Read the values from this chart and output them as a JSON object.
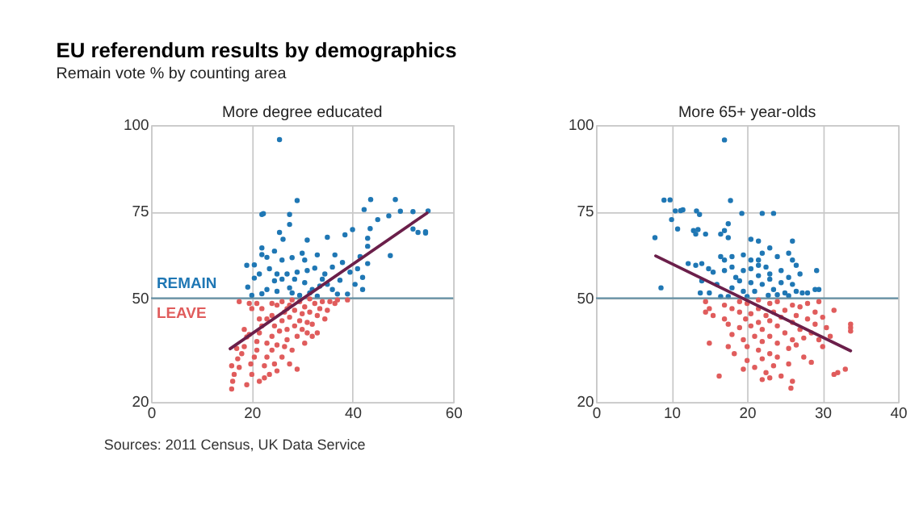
{
  "chart_data": [
    {
      "type": "scatter",
      "title": "EU referendum results by demographics",
      "subtitle": "Remain vote % by counting area",
      "xlabel": "More degree educated",
      "xlim": [
        0,
        60
      ],
      "xticks": [
        0,
        20,
        40,
        60
      ],
      "ylim": [
        20,
        100
      ],
      "yticks": [
        20,
        50,
        75,
        100
      ],
      "grid": true,
      "marker": "circle",
      "annotations": [
        "REMAIN",
        "LEAVE",
        "Sources: 2011 Census, UK Data Service"
      ],
      "ref_lines": [
        {
          "axis": "y",
          "value": 50,
          "color": "#5b8aa0"
        }
      ],
      "series": [
        {
          "type": "scatter",
          "color": "#1f77b4",
          "x": [
            25.5,
            29,
            43.6,
            48.5,
            22,
            22.3,
            27.5,
            27.5,
            25.5,
            26.2,
            31,
            35,
            38.5,
            40,
            42.3,
            43.5,
            45,
            47.2,
            49.5,
            52,
            53,
            54.5,
            54.5,
            55,
            52,
            47.5,
            43,
            43,
            19,
            20.5,
            22,
            22,
            23,
            24.5,
            26,
            28,
            30,
            30.5,
            33,
            36.5,
            38,
            36,
            34.5,
            32.5,
            31,
            29,
            27,
            25,
            23.5,
            21.5,
            19.2,
            20.5,
            22,
            23,
            24.5,
            26,
            27.5,
            28,
            29.5,
            30.5,
            32,
            33.5,
            35,
            36,
            37.5,
            39,
            40.5,
            42,
            42,
            41,
            43,
            41.5,
            39.5,
            34,
            25,
            28.5,
            31.5,
            37,
            20,
            33
          ],
          "values": [
            95.8,
            78.2,
            78.5,
            78.5,
            74.2,
            74.4,
            74.2,
            71.3,
            69,
            67,
            66.8,
            67.6,
            68.3,
            69.8,
            75.6,
            70.1,
            72.7,
            73.8,
            75.1,
            75,
            69,
            68.8,
            69.2,
            75.2,
            70,
            62.3,
            65,
            67.3,
            59.5,
            59.6,
            62.6,
            64.5,
            61.8,
            63.6,
            61,
            61.7,
            63,
            61,
            62.5,
            62.5,
            60.3,
            59,
            57,
            58.7,
            58,
            57.5,
            57,
            57,
            58.5,
            57,
            53.2,
            55.8,
            51.3,
            52.5,
            55,
            55.5,
            53,
            51.5,
            50.8,
            54.5,
            52.5,
            53.5,
            54,
            52.5,
            55.2,
            51.2,
            54,
            52.5,
            56,
            58.5,
            60,
            62,
            57.5,
            55.5,
            52,
            55.5,
            51.5,
            51.2,
            50.8,
            50.6
          ]
        },
        {
          "type": "scatter",
          "color": "#e05c5c",
          "x": [
            16,
            16.2,
            16.5,
            16,
            17.5,
            17.2,
            18,
            17,
            18.5,
            19,
            18.5,
            19.5,
            19.8,
            20,
            20.5,
            21,
            21,
            21.5,
            22,
            21.5,
            22,
            20,
            17.5,
            19.5,
            23,
            23,
            22.5,
            24,
            24,
            24.5,
            24,
            25,
            25,
            25.5,
            26,
            26.5,
            26,
            27,
            27,
            27.5,
            27.5,
            28,
            28.5,
            28.5,
            29,
            29.5,
            29.5,
            30,
            30,
            30.5,
            31,
            31,
            31.5,
            32,
            32.5,
            33,
            33.5,
            34,
            35,
            35.5,
            36.5,
            37,
            39,
            33,
            32,
            29,
            27.5,
            24.5,
            23.5,
            22.5,
            21.5,
            19,
            25,
            26.5,
            30.5,
            23,
            26,
            28,
            31.5,
            34.5,
            27,
            24,
            21
          ],
          "values": [
            23.8,
            26,
            28,
            30.5,
            30,
            32.5,
            34,
            35.5,
            36,
            38.8,
            41,
            39.5,
            31,
            28,
            33,
            35,
            37.5,
            40,
            42,
            44,
            47,
            47,
            49,
            48.5,
            37,
            33,
            30.5,
            35,
            39,
            42,
            45,
            48,
            36.5,
            40.5,
            43.5,
            46,
            33,
            38,
            41,
            44.5,
            48,
            35,
            42,
            46.5,
            39,
            43.5,
            49,
            41,
            45.5,
            47.5,
            40,
            43,
            46,
            42.5,
            48.5,
            45,
            47,
            49,
            46.5,
            49,
            48.5,
            49.5,
            49.5,
            40,
            39,
            29.5,
            31,
            31,
            28,
            27,
            26,
            25,
            29,
            36,
            37,
            44,
            49,
            49.5,
            49.8,
            44,
            47,
            48.5,
            48.5
          ]
        },
        {
          "type": "line",
          "marker": "none",
          "color": "#6b1f4a",
          "x": [
            15.7,
            54.8
          ],
          "values": [
            35.4,
            74.6
          ]
        }
      ]
    },
    {
      "type": "scatter",
      "xlabel": "More 65+ year-olds",
      "xlim": [
        0,
        40
      ],
      "xticks": [
        0,
        10,
        20,
        30,
        40
      ],
      "ylim": [
        20,
        100
      ],
      "yticks": [
        20,
        50,
        75,
        100
      ],
      "grid": true,
      "marker": "circle",
      "ref_lines": [
        {
          "axis": "y",
          "value": 50,
          "color": "#5b8aa0"
        }
      ],
      "series": [
        {
          "type": "scatter",
          "color": "#1f77b4",
          "x": [
            17,
            9,
            9.8,
            17.8,
            10,
            10.5,
            11.2,
            11.5,
            13.3,
            13.7,
            12.9,
            13.5,
            13.2,
            14.5,
            10.8,
            7.8,
            16.5,
            17,
            17.5,
            17.5,
            19.3,
            22,
            23.5,
            20.5,
            21.5,
            26,
            16.5,
            17,
            18,
            19.5,
            20.5,
            21.5,
            22,
            23,
            24,
            25.5,
            26,
            12.2,
            13.2,
            14,
            14.9,
            15.5,
            17,
            18,
            19.5,
            20.5,
            21.5,
            22.5,
            23,
            24.5,
            26.5,
            27,
            29.2,
            8.6,
            13.8,
            15,
            16.5,
            17.5,
            18,
            19,
            19.5,
            20.5,
            21,
            21.5,
            22,
            23,
            23.5,
            24,
            24.5,
            25,
            25.5,
            26,
            26.5,
            27.3,
            28,
            29,
            29.5,
            14,
            16,
            18.5,
            22.8,
            20,
            25.5
          ],
          "values": [
            95.7,
            78.3,
            78.4,
            78.2,
            72.7,
            75.2,
            75.3,
            75.5,
            75.2,
            74.2,
            69.5,
            69.8,
            68.5,
            68.5,
            70,
            67.5,
            68.5,
            69.5,
            71.5,
            67.5,
            74.5,
            74.5,
            74.5,
            67,
            66.5,
            66.5,
            62,
            61,
            62,
            62.5,
            61,
            61,
            63,
            64.5,
            62,
            63,
            61,
            60,
            59.5,
            60,
            58.5,
            57.5,
            58,
            59,
            58,
            58.5,
            59.5,
            59,
            57,
            58,
            59.5,
            57,
            58,
            53,
            51.5,
            51.5,
            50.5,
            50.5,
            53,
            55,
            52,
            54.5,
            52,
            56.5,
            54,
            55.5,
            52.5,
            51,
            54.5,
            51.5,
            56,
            54,
            52,
            51.5,
            51.5,
            52.5,
            52.5,
            55,
            54,
            56,
            50.8,
            50.5,
            50.7
          ]
        },
        {
          "type": "scatter",
          "color": "#e05c5c",
          "x": [
            14.5,
            15,
            15.5,
            14.5,
            15,
            16.3,
            17,
            17,
            17.5,
            18,
            18,
            18.3,
            19,
            19,
            19.5,
            19.8,
            20,
            20,
            20,
            20.5,
            20.5,
            21,
            21,
            21.5,
            21.5,
            21.5,
            22,
            22,
            22,
            22.5,
            22.5,
            23,
            23,
            23,
            23,
            23.5,
            23.5,
            24,
            24,
            24,
            24,
            24.5,
            24.5,
            25,
            25,
            25.5,
            25.5,
            26,
            26,
            26,
            26,
            25.8,
            26.5,
            26.5,
            27,
            27,
            27.5,
            27.5,
            28,
            28,
            28.5,
            28.5,
            29,
            29,
            29.5,
            29.5,
            30,
            30,
            30.5,
            31,
            31.5,
            31.5,
            32,
            33,
            33.7,
            33.7,
            33.7,
            21.5,
            19,
            17.5,
            22,
            23,
            19.5
          ],
          "values": [
            49,
            47,
            45,
            46,
            37,
            27.5,
            48,
            44,
            42.5,
            47,
            39.5,
            34,
            46,
            41.5,
            38,
            44,
            48.5,
            36,
            32,
            42,
            45.5,
            39,
            30,
            47,
            43,
            35,
            41,
            37.5,
            32.5,
            45,
            28.5,
            48.5,
            43.5,
            39,
            34,
            46,
            30.5,
            49,
            42,
            37,
            33,
            44.5,
            27.5,
            40,
            46.5,
            35.5,
            31,
            48,
            43,
            38,
            26,
            24,
            45,
            36.5,
            41,
            47.5,
            38.5,
            33,
            44,
            48.5,
            40,
            31.5,
            46,
            42.5,
            38,
            49,
            44.5,
            36,
            41.5,
            39,
            46.5,
            28,
            28.5,
            29.5,
            42.5,
            41.5,
            40.5,
            49.5,
            49,
            36,
            26.5,
            27,
            29.5
          ]
        },
        {
          "type": "line",
          "marker": "none",
          "color": "#6b1f4a",
          "x": [
            7.9,
            33.7
          ],
          "values": [
            62.2,
            34.8
          ]
        }
      ]
    }
  ]
}
